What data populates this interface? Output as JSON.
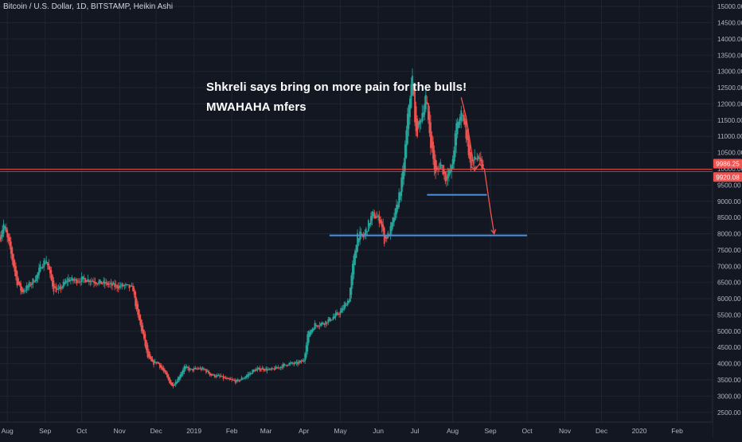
{
  "header": {
    "symbol_title": "Bitcoin / U.S. Dollar, 1D, BITSTAMP, Heikin Ashi"
  },
  "annotations": {
    "line1": "Shkreli says bring on more pain for the bulls!",
    "line2": "MWAHAHA mfers"
  },
  "colors": {
    "background": "#131722",
    "grid": "#1f2430",
    "up": "#26a69a",
    "down": "#ef5350",
    "trendline": "#4a90e2",
    "price_line": "#ef5350",
    "axis_text": "#b2b5be"
  },
  "price_labels": {
    "current": "9986.25",
    "countdown": "9920.08"
  },
  "chart_data": {
    "type": "candlestick",
    "style": "Heikin Ashi",
    "interval": "1D",
    "exchange": "BITSTAMP",
    "grid": true,
    "y_axis_position": "right",
    "ylim": [
      2200,
      15200
    ],
    "y_ticks": [
      2500,
      3000,
      3500,
      4000,
      4500,
      5000,
      5500,
      6000,
      6500,
      7000,
      7500,
      8000,
      8500,
      9000,
      9500,
      10000,
      10500,
      11000,
      11500,
      12000,
      12500,
      13000,
      13500,
      14000,
      14500,
      15000
    ],
    "y_tick_labels": [
      "2500.00",
      "3000.00",
      "3500.00",
      "4000.00",
      "4500.00",
      "5000.00",
      "5500.00",
      "6000.00",
      "6500.00",
      "7000.00",
      "7500.00",
      "8000.00",
      "8500.00",
      "9000.00",
      "9500.00",
      "10000.00",
      "10500.00",
      "11000.00",
      "11500.00",
      "12000.00",
      "12500.00",
      "13000.00",
      "13500.00",
      "14000.00",
      "14500.00",
      "15000.00"
    ],
    "x_range": [
      "2018-07-26",
      "2020-03-01"
    ],
    "x_ticks": [
      {
        "label": "Aug",
        "date": "2018-08-01"
      },
      {
        "label": "Sep",
        "date": "2018-09-01"
      },
      {
        "label": "Oct",
        "date": "2018-10-01"
      },
      {
        "label": "Nov",
        "date": "2018-11-01"
      },
      {
        "label": "Dec",
        "date": "2018-12-01"
      },
      {
        "label": "2019",
        "date": "2019-01-01"
      },
      {
        "label": "Feb",
        "date": "2019-02-01"
      },
      {
        "label": "Mar",
        "date": "2019-03-01"
      },
      {
        "label": "Apr",
        "date": "2019-04-01"
      },
      {
        "label": "May",
        "date": "2019-05-01"
      },
      {
        "label": "Jun",
        "date": "2019-06-01"
      },
      {
        "label": "Jul",
        "date": "2019-07-01"
      },
      {
        "label": "Aug",
        "date": "2019-08-01"
      },
      {
        "label": "Sep",
        "date": "2019-09-01"
      },
      {
        "label": "Oct",
        "date": "2019-10-01"
      },
      {
        "label": "Nov",
        "date": "2019-11-01"
      },
      {
        "label": "Dec",
        "date": "2019-12-01"
      },
      {
        "label": "2020",
        "date": "2020-01-01"
      },
      {
        "label": "Feb",
        "date": "2020-02-01"
      }
    ],
    "price_path": [
      [
        "2018-07-26",
        7900
      ],
      [
        "2018-07-29",
        8300
      ],
      [
        "2018-08-02",
        7700
      ],
      [
        "2018-08-05",
        7200
      ],
      [
        "2018-08-09",
        6500
      ],
      [
        "2018-08-13",
        6200
      ],
      [
        "2018-08-17",
        6350
      ],
      [
        "2018-08-21",
        6500
      ],
      [
        "2018-08-25",
        6700
      ],
      [
        "2018-08-29",
        7050
      ],
      [
        "2018-09-02",
        7200
      ],
      [
        "2018-09-05",
        6700
      ],
      [
        "2018-09-08",
        6300
      ],
      [
        "2018-09-12",
        6250
      ],
      [
        "2018-09-16",
        6450
      ],
      [
        "2018-09-20",
        6600
      ],
      [
        "2018-09-25",
        6550
      ],
      [
        "2018-10-01",
        6600
      ],
      [
        "2018-10-08",
        6580
      ],
      [
        "2018-10-15",
        6500
      ],
      [
        "2018-10-22",
        6450
      ],
      [
        "2018-10-29",
        6380
      ],
      [
        "2018-11-05",
        6400
      ],
      [
        "2018-11-12",
        6300
      ],
      [
        "2018-11-15",
        5600
      ],
      [
        "2018-11-20",
        4900
      ],
      [
        "2018-11-24",
        4200
      ],
      [
        "2018-11-28",
        4000
      ],
      [
        "2018-12-02",
        4050
      ],
      [
        "2018-12-08",
        3700
      ],
      [
        "2018-12-14",
        3300
      ],
      [
        "2018-12-18",
        3500
      ],
      [
        "2018-12-24",
        3900
      ],
      [
        "2018-12-29",
        3800
      ],
      [
        "2019-01-05",
        3850
      ],
      [
        "2019-01-10",
        3800
      ],
      [
        "2019-01-15",
        3650
      ],
      [
        "2019-01-22",
        3600
      ],
      [
        "2019-01-29",
        3500
      ],
      [
        "2019-02-05",
        3450
      ],
      [
        "2019-02-12",
        3600
      ],
      [
        "2019-02-19",
        3800
      ],
      [
        "2019-02-26",
        3850
      ],
      [
        "2019-03-05",
        3800
      ],
      [
        "2019-03-12",
        3900
      ],
      [
        "2019-03-19",
        4000
      ],
      [
        "2019-03-26",
        4000
      ],
      [
        "2019-04-01",
        4100
      ],
      [
        "2019-04-04",
        4900
      ],
      [
        "2019-04-10",
        5200
      ],
      [
        "2019-04-17",
        5250
      ],
      [
        "2019-04-24",
        5400
      ],
      [
        "2019-05-01",
        5600
      ],
      [
        "2019-05-08",
        6000
      ],
      [
        "2019-05-11",
        7000
      ],
      [
        "2019-05-15",
        8000
      ],
      [
        "2019-05-20",
        7900
      ],
      [
        "2019-05-27",
        8600
      ],
      [
        "2019-05-31",
        8500
      ],
      [
        "2019-06-03",
        8400
      ],
      [
        "2019-06-06",
        7800
      ],
      [
        "2019-06-10",
        8000
      ],
      [
        "2019-06-16",
        8800
      ],
      [
        "2019-06-21",
        9800
      ],
      [
        "2019-06-26",
        12000
      ],
      [
        "2019-06-29",
        12800
      ],
      [
        "2019-07-02",
        11000
      ],
      [
        "2019-07-06",
        11600
      ],
      [
        "2019-07-10",
        12200
      ],
      [
        "2019-07-14",
        10800
      ],
      [
        "2019-07-18",
        9800
      ],
      [
        "2019-07-22",
        10200
      ],
      [
        "2019-07-26",
        9700
      ],
      [
        "2019-07-31",
        10000
      ],
      [
        "2019-08-04",
        11300
      ],
      [
        "2019-08-09",
        11800
      ],
      [
        "2019-08-13",
        10800
      ],
      [
        "2019-08-16",
        10000
      ],
      [
        "2019-08-19",
        10400
      ],
      [
        "2019-08-23",
        10200
      ],
      [
        "2019-08-26",
        10000
      ]
    ],
    "projection_path": [
      [
        "2019-08-08",
        12200
      ],
      [
        "2019-08-12",
        11600
      ],
      [
        "2019-08-15",
        10900
      ],
      [
        "2019-08-19",
        9950
      ],
      [
        "2019-08-23",
        10150
      ],
      [
        "2019-08-27",
        10000
      ],
      [
        "2019-09-01",
        8700
      ],
      [
        "2019-09-04",
        8000
      ]
    ],
    "trendlines": [
      {
        "price": 9200,
        "from": "2019-07-11",
        "to": "2019-08-29"
      },
      {
        "price": 7950,
        "from": "2019-04-22",
        "to": "2019-10-01"
      }
    ],
    "horizontal_levels": [
      {
        "price": 9986.25,
        "label": "9986.25"
      },
      {
        "price": 9920.08,
        "label": "9920.08"
      }
    ]
  }
}
